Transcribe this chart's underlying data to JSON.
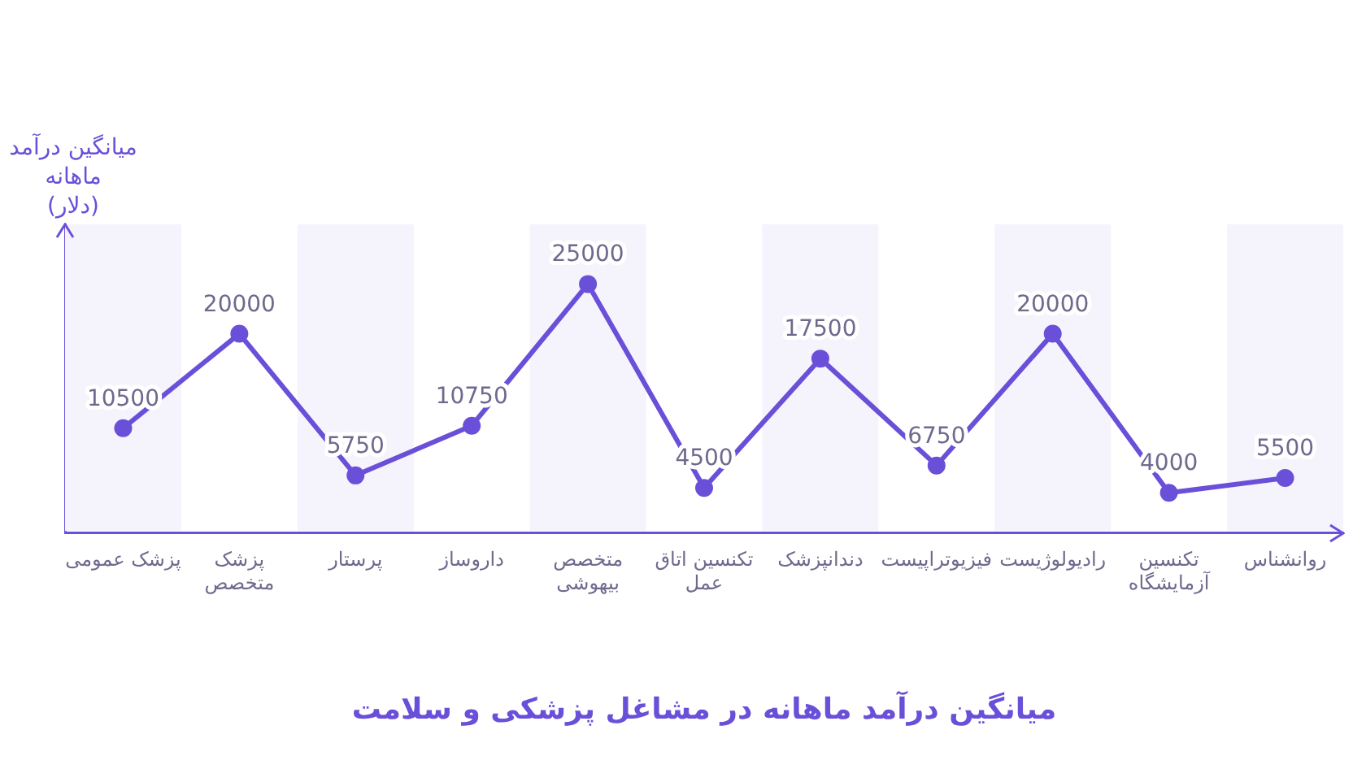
{
  "chart_data": {
    "type": "line",
    "title": "میانگین درآمد ماهانه در مشاغل پزشکی و سلامت",
    "ylabel": "میانگین درآمد\nماهانه\n(دلار)",
    "categories": [
      "پزشک عمومی",
      "پزشک\nمتخصص",
      "پرستار",
      "داروساز",
      "متخصص\nبیهوشی",
      "تکنسین اتاق\nعمل",
      "دندانپزشک",
      "فیزیوتراپیست",
      "رادیولوژیست",
      "تکنسین\nآزمایشگاه",
      "روانشناس"
    ],
    "series": [
      {
        "color": "#6a50d8",
        "values": [
          10500,
          20000,
          5750,
          10750,
          25000,
          4500,
          17500,
          6750,
          20000,
          4000,
          5500
        ]
      }
    ],
    "ylim": [
      0,
      31000
    ],
    "tick_labels": "x",
    "data_labels": true,
    "marker": "circle",
    "grid": false,
    "legend": false
  }
}
